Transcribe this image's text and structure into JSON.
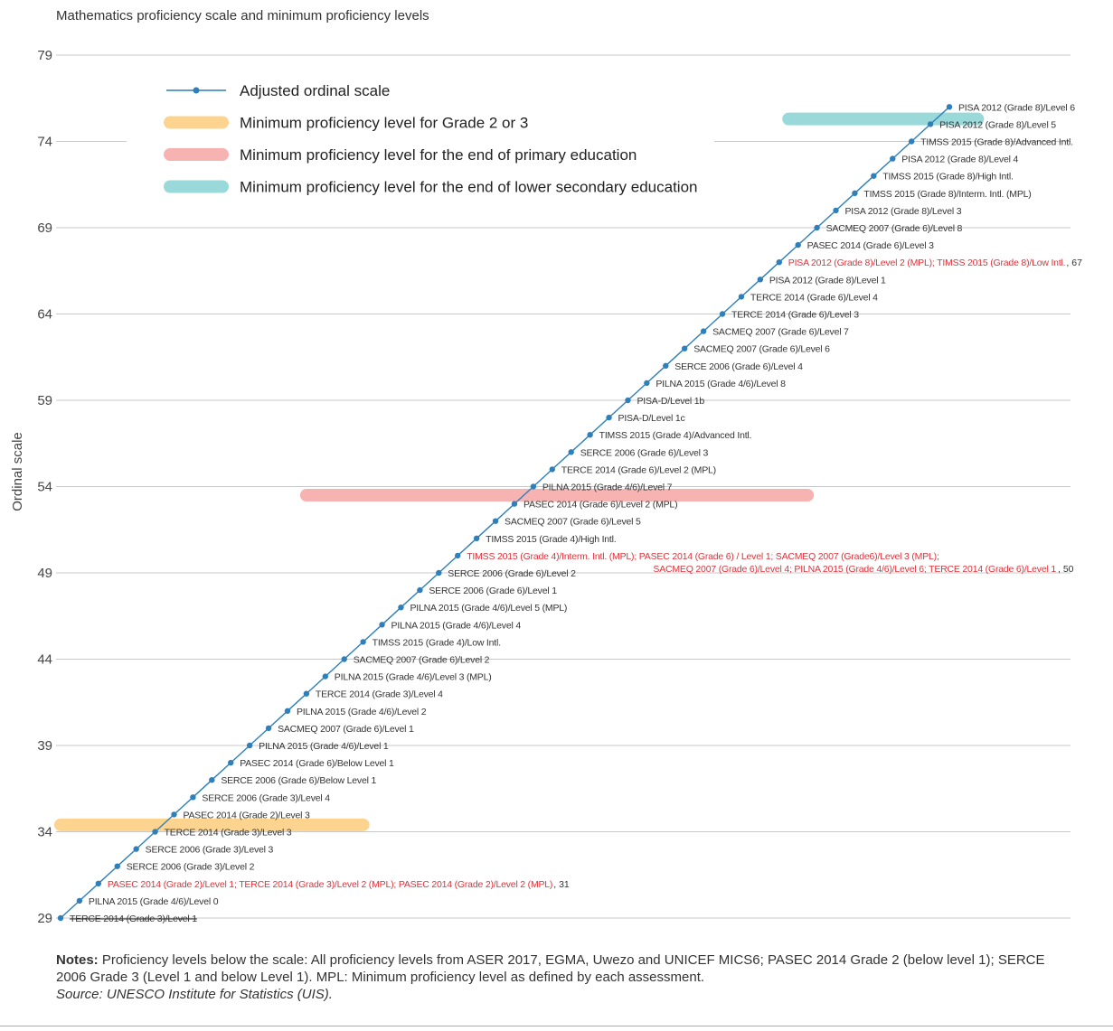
{
  "chart_data": {
    "type": "line",
    "title": "Mathematics proficiency scale and minimum proficiency levels",
    "ylabel": "Ordinal scale",
    "xlabel": "",
    "ylim": [
      29,
      79
    ],
    "yticks": [
      29,
      34,
      39,
      44,
      49,
      54,
      59,
      64,
      69,
      74,
      79
    ],
    "grid": true,
    "legend_placement": "top-left",
    "legend": [
      {
        "name": "Adjusted ordinal scale",
        "kind": "line",
        "color": "#2e7fba"
      },
      {
        "name": "Minimum proficiency level for Grade 2 or 3",
        "kind": "band",
        "color": "#fcd48f"
      },
      {
        "name": "Minimum proficiency level for the end of primary education",
        "kind": "band",
        "color": "#f7b2b2"
      },
      {
        "name": "Minimum proficiency level for the end of lower secondary education",
        "kind": "band",
        "color": "#9ad9d9"
      }
    ],
    "bands": [
      {
        "level": "Grade 2 or 3",
        "y": 34.4,
        "x_from": 29,
        "x_to": 45,
        "color": "#fcd48f"
      },
      {
        "level": "End of primary",
        "y": 53.5,
        "x_from": 42,
        "x_to": 68.5,
        "color": "#f7b2b2"
      },
      {
        "level": "End of lower secondary",
        "y": 75.3,
        "x_from": 67.5,
        "x_to": 77.5,
        "color": "#9ad9d9"
      }
    ],
    "series": [
      {
        "name": "Adjusted ordinal scale",
        "color": "#2e7fba",
        "points": [
          {
            "y": 29,
            "label": "TERCE 2014 (Grade 3)/Level 1",
            "color": "#333333",
            "strike": true
          },
          {
            "y": 30,
            "label": "PILNA 2015 (Grade 4/6)/Level 0",
            "color": "#333333"
          },
          {
            "y": 31,
            "label": "PASEC 2014 (Grade 2)/Level 1; TERCE 2014 (Grade 3)/Level 2 (MPL); PASEC 2014 (Grade 2)/Level 2 (MPL)",
            "suffix": ", 31",
            "color": "#e0323a"
          },
          {
            "y": 32,
            "label": "SERCE 2006 (Grade 3)/Level 2",
            "color": "#333333"
          },
          {
            "y": 33,
            "label": "SERCE 2006 (Grade 3)/Level 3",
            "color": "#333333"
          },
          {
            "y": 34,
            "label": "TERCE 2014 (Grade 3)/Level 3",
            "color": "#333333"
          },
          {
            "y": 35,
            "label": "PASEC 2014 (Grade 2)/Level 3",
            "color": "#333333"
          },
          {
            "y": 36,
            "label": "SERCE 2006 (Grade 3)/Level 4",
            "color": "#333333"
          },
          {
            "y": 37,
            "label": "SERCE 2006 (Grade 6)/Below Level 1",
            "color": "#333333"
          },
          {
            "y": 38,
            "label": "PASEC 2014 (Grade 6)/Below Level 1",
            "color": "#333333"
          },
          {
            "y": 39,
            "label": "PILNA 2015  (Grade 4/6)/Level 1",
            "color": "#333333"
          },
          {
            "y": 40,
            "label": "SACMEQ 2007 (Grade 6)/Level 1",
            "color": "#333333"
          },
          {
            "y": 41,
            "label": "PILNA 2015 (Grade 4/6)/Level 2",
            "color": "#333333"
          },
          {
            "y": 42,
            "label": "TERCE 2014 (Grade 3)/Level 4",
            "color": "#333333"
          },
          {
            "y": 43,
            "label": "PILNA 2015 (Grade 4/6)/Level 3 (MPL)",
            "color": "#333333"
          },
          {
            "y": 44,
            "label": "SACMEQ 2007 (Grade 6)/Level 2",
            "color": "#333333"
          },
          {
            "y": 45,
            "label": "TIMSS 2015 (Grade 4)/Low Intl.",
            "color": "#333333"
          },
          {
            "y": 46,
            "label": "PILNA 2015 (Grade 4/6)/Level 4",
            "color": "#333333"
          },
          {
            "y": 47,
            "label": "PILNA 2015 (Grade 4/6)/Level 5 (MPL)",
            "color": "#333333"
          },
          {
            "y": 48,
            "label": "SERCE 2006 (Grade 6)/Level 1",
            "color": "#333333"
          },
          {
            "y": 49,
            "label": "SERCE 2006 (Grade 6)/Level 2",
            "color": "#333333"
          },
          {
            "y": 50,
            "label": "TIMSS 2015 (Grade 4)/Interm. Intl. (MPL); PASEC 2014 (Grade 6) / Level 1; SACMEQ 2007 (Grade6)/Level 3 (MPL);",
            "label2": "SACMEQ 2007 (Grade 6)/Level 4; PILNA 2015 (Grade 4/6)/Level 6; TERCE 2014 (Grade 6)/Level 1",
            "suffix": ", 50",
            "color": "#e0323a"
          },
          {
            "y": 51,
            "label": "TIMSS 2015 (Grade 4)/High Intl.",
            "color": "#333333"
          },
          {
            "y": 52,
            "label": "SACMEQ 2007 (Grade 6)/Level 5",
            "color": "#333333"
          },
          {
            "y": 53,
            "label": "PASEC 2014 (Grade 6)/Level 2 (MPL)",
            "color": "#333333"
          },
          {
            "y": 54,
            "label": "PILNA 2015 (Grade 4/6)/Level 7",
            "color": "#333333"
          },
          {
            "y": 55,
            "label": "TERCE 2014 (Grade 6)/Level 2 (MPL)",
            "color": "#333333"
          },
          {
            "y": 56,
            "label": "SERCE 2006 (Grade 6)/Level 3",
            "color": "#333333"
          },
          {
            "y": 57,
            "label": "TIMSS 2015 (Grade 4)/Advanced Intl.",
            "color": "#333333"
          },
          {
            "y": 58,
            "label": "PISA-D/Level 1c",
            "color": "#333333"
          },
          {
            "y": 59,
            "label": "PISA-D/Level 1b",
            "color": "#333333"
          },
          {
            "y": 60,
            "label": "PILNA 2015 (Grade 4/6)/Level 8",
            "color": "#333333"
          },
          {
            "y": 61,
            "label": "SERCE 2006 (Grade 6)/Level 4",
            "color": "#333333"
          },
          {
            "y": 62,
            "label": "SACMEQ 2007 (Grade 6)/Level 6",
            "color": "#333333"
          },
          {
            "y": 63,
            "label": "SACMEQ 2007 (Grade 6)/Level 7",
            "color": "#333333"
          },
          {
            "y": 64,
            "label": "TERCE 2014 (Grade 6)/Level 3",
            "color": "#333333"
          },
          {
            "y": 65,
            "label": "TERCE 2014 (Grade 6)/Level 4",
            "color": "#333333"
          },
          {
            "y": 66,
            "label": "PISA 2012 (Grade 8)/Level 1",
            "color": "#333333"
          },
          {
            "y": 67,
            "label": "PISA 2012 (Grade 8)/Level 2 (MPL); TIMSS 2015 (Grade 8)/Low Intl.",
            "suffix": ", 67",
            "color": "#e0323a"
          },
          {
            "y": 68,
            "label": "PASEC 2014 (Grade 6)/Level 3",
            "color": "#333333"
          },
          {
            "y": 69,
            "label": "SACMEQ 2007 (Grade 6)/Level 8",
            "color": "#333333"
          },
          {
            "y": 70,
            "label": "PISA 2012 (Grade 8)/Level 3",
            "color": "#333333"
          },
          {
            "y": 71,
            "label": "TIMSS 2015 (Grade 8)/Interm. Intl. (MPL)",
            "color": "#333333"
          },
          {
            "y": 72,
            "label": "TIMSS 2015 (Grade 8)/High Intl.",
            "color": "#333333"
          },
          {
            "y": 73,
            "label": "PISA 2012 (Grade 8)/Level 4",
            "color": "#333333"
          },
          {
            "y": 74,
            "label": "TIMSS 2015 (Grade 8)/Advanced Intl.",
            "color": "#333333"
          },
          {
            "y": 75,
            "label": "PISA 2012 (Grade 8)/Level 5",
            "color": "#333333"
          },
          {
            "y": 76,
            "label": "PISA 2012 (Grade 8)/Level 6",
            "color": "#333333"
          }
        ]
      }
    ]
  },
  "notes": {
    "label": "Notes:",
    "text": " Proficiency levels below the scale: All proficiency levels from ASER 2017, EGMA, Uwezo and UNICEF MICS6; PASEC 2014 Grade 2 (below level 1); SERCE 2006 Grade 3 (Level 1 and below Level 1). MPL: Minimum proficiency level as defined by each assessment.",
    "source": "Source: UNESCO Institute for Statistics (UIS)."
  }
}
